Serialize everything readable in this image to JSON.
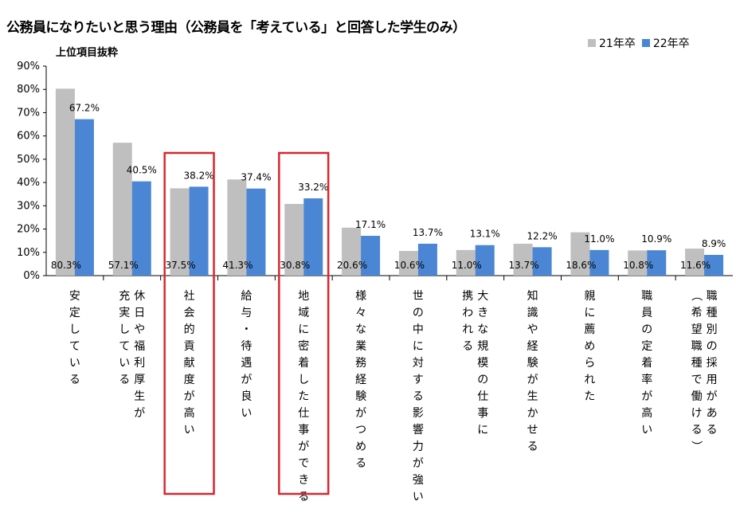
{
  "page": {
    "title": "公務員になりたいと思う理由（公務員を「考えている」と回答した学生のみ）",
    "subtitle": "上位項目抜粋"
  },
  "chart_data": {
    "type": "bar",
    "title": "公務員になりたいと思う理由（公務員を「考えている」と回答した学生のみ）",
    "subtitle": "上位項目抜粋",
    "xlabel": "",
    "ylabel": "",
    "ylim": [
      0,
      90
    ],
    "yticks": [
      0,
      10,
      20,
      30,
      40,
      50,
      60,
      70,
      80,
      90
    ],
    "ytick_labels": [
      "0%",
      "10%",
      "20%",
      "30%",
      "40%",
      "50%",
      "60%",
      "70%",
      "80%",
      "90%"
    ],
    "grid": false,
    "legend_position": "top-right",
    "categories": [
      "安定している",
      "休日や福利厚生が\n充実している",
      "社会的貢献度が高い",
      "給与・待遇が良い",
      "地域に密着した仕事ができる",
      "様々な業務経験がつめる",
      "世の中に対する影響力が強い",
      "大きな規模の仕事に\n携われる",
      "知識や経験が生かせる",
      "親に薦められた",
      "職員の定着率が高い",
      "職種別の採用がある\n（希望職種で働ける）"
    ],
    "series": [
      {
        "name": "21年卒",
        "color": "#bfbfbf",
        "values": [
          80.3,
          57.1,
          37.5,
          41.3,
          30.8,
          20.6,
          10.6,
          11.0,
          13.7,
          18.6,
          10.8,
          11.6
        ],
        "labels": [
          "80.3%",
          "57.1%",
          "37.5%",
          "41.3%",
          "30.8%",
          "20.6%",
          "10.6%",
          "11.0%",
          "13.7%",
          "18.6%",
          "10.8%",
          "11.6%"
        ]
      },
      {
        "name": "22年卒",
        "color": "#4a86d4",
        "values": [
          67.2,
          40.5,
          38.2,
          37.4,
          33.2,
          17.1,
          13.7,
          13.1,
          12.2,
          11.0,
          10.9,
          8.9
        ],
        "labels": [
          "67.2%",
          "40.5%",
          "38.2%",
          "37.4%",
          "33.2%",
          "17.1%",
          "13.7%",
          "13.1%",
          "12.2%",
          "11.0%",
          "10.9%",
          "8.9%"
        ]
      }
    ],
    "highlighted_categories": [
      2,
      4
    ],
    "highlight_color": "#d9262e"
  }
}
